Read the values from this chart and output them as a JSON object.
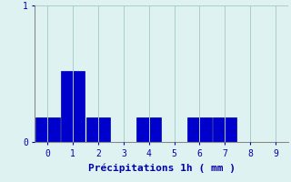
{
  "categories": [
    0,
    1,
    2,
    3,
    4,
    5,
    6,
    7,
    8,
    9
  ],
  "values": [
    0.18,
    0.52,
    0.18,
    0.0,
    0.18,
    0.0,
    0.18,
    0.18,
    0.0,
    0.0
  ],
  "bar_color": "#0000cc",
  "bar_edge_color": "#0000aa",
  "background_color": "#dff2f2",
  "grid_color": "#aacccc",
  "axis_color": "#888888",
  "text_color": "#0000aa",
  "xlabel": "Précipitations 1h ( mm )",
  "ylim": [
    0,
    1.0
  ],
  "xlim": [
    -0.5,
    9.5
  ],
  "yticks": [
    0,
    1
  ],
  "xticks": [
    0,
    1,
    2,
    3,
    4,
    5,
    6,
    7,
    8,
    9
  ],
  "xlabel_fontsize": 8,
  "tick_fontsize": 7,
  "bar_width": 0.95
}
